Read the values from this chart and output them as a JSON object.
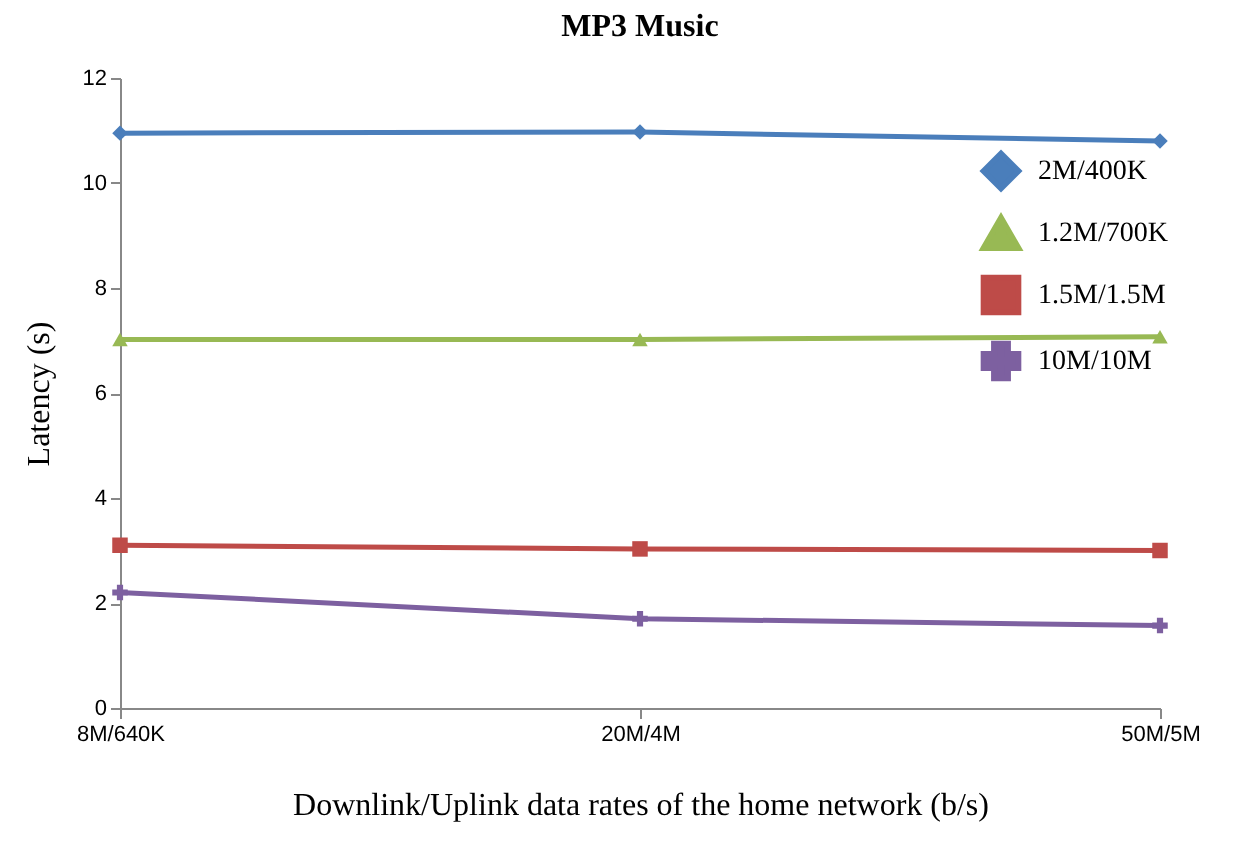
{
  "chart_data": {
    "type": "line",
    "title": "MP3 Music",
    "xlabel": "Downlink/Uplink data rates of the home network (b/s)",
    "ylabel": "Latency (s)",
    "categories": [
      "8M/640K",
      "20M/4M",
      "50M/5M"
    ],
    "series": [
      {
        "name": "2M/400K",
        "color": "#4a7ebb",
        "marker": "diamond",
        "values": [
          10.95,
          10.97,
          10.8
        ]
      },
      {
        "name": "1.2M/700K",
        "color": "#98b954",
        "marker": "triangle",
        "values": [
          7.02,
          7.02,
          7.07
        ]
      },
      {
        "name": "1.5M/1.5M",
        "color": "#be4b48",
        "marker": "square",
        "values": [
          3.1,
          3.03,
          3.0
        ]
      },
      {
        "name": "10M/10M",
        "color": "#7d60a0",
        "marker": "cross",
        "values": [
          2.2,
          1.7,
          1.57
        ]
      }
    ],
    "ylim": [
      0,
      12
    ],
    "yticks": [
      0,
      2,
      4,
      6,
      8,
      10,
      12
    ],
    "grid": false,
    "legend": "top right"
  }
}
